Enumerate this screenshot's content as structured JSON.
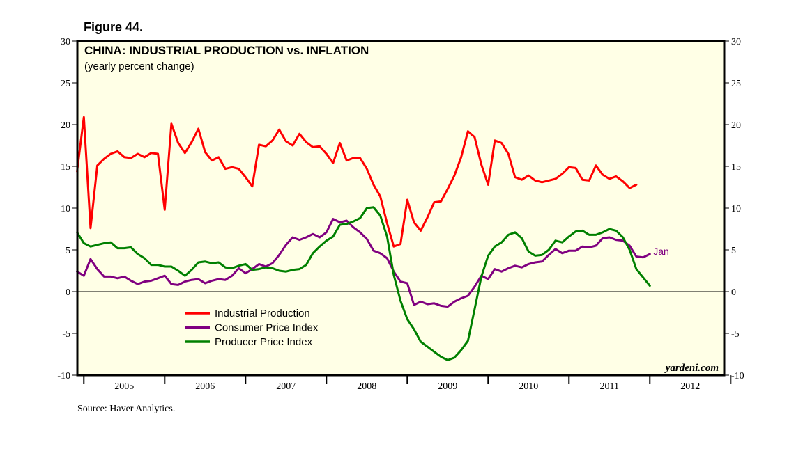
{
  "figure_label": "Figure 44.",
  "source": "Source: Haver Analytics.",
  "colors": {
    "background": "#ffffe6",
    "industrial_production": "#ff0000",
    "consumer_price_index": "#800080",
    "producer_price_index": "#008000"
  },
  "chart_data": {
    "type": "line",
    "title": "CHINA: INDUSTRIAL PRODUCTION vs. INFLATION",
    "subtitle": "(yearly percent change)",
    "credit": "yardeni.com",
    "ylim": [
      -10,
      30
    ],
    "yticks": [
      -10,
      -5,
      0,
      5,
      10,
      15,
      20,
      25,
      30
    ],
    "ytick_labels": [
      "-10",
      "-5",
      "0",
      "5",
      "10",
      "15",
      "20",
      "25",
      "30"
    ],
    "xlim": [
      2004.92,
      2012.92
    ],
    "x_tick_years": [
      2005,
      2006,
      2007,
      2008,
      2009,
      2010,
      2011,
      2012,
      2013
    ],
    "x_labels": [
      "2005",
      "2006",
      "2007",
      "2008",
      "2009",
      "2010",
      "2011",
      "2012"
    ],
    "x_start": "2004-12",
    "legend_position": "lower-left",
    "series": [
      {
        "name": "Industrial Production",
        "key": "industrial_production",
        "values": [
          14.4,
          20.9,
          7.6,
          15.1,
          15.9,
          16.5,
          16.8,
          16.1,
          16.0,
          16.5,
          16.1,
          16.6,
          16.5,
          9.8,
          20.1,
          17.8,
          16.6,
          17.9,
          19.5,
          16.7,
          15.7,
          16.1,
          14.7,
          14.9,
          14.7,
          13.7,
          12.6,
          17.6,
          17.4,
          18.1,
          19.4,
          18.0,
          17.5,
          18.9,
          17.9,
          17.3,
          17.4,
          16.5,
          15.4,
          17.8,
          15.7,
          16.0,
          16.0,
          14.7,
          12.8,
          11.4,
          8.2,
          5.4,
          5.7,
          11.0,
          8.3,
          7.3,
          8.9,
          10.7,
          10.8,
          12.3,
          13.9,
          16.1,
          19.2,
          18.5,
          15.2,
          12.8,
          18.1,
          17.8,
          16.5,
          13.7,
          13.4,
          13.9,
          13.3,
          13.1,
          13.3,
          13.5,
          14.1,
          14.9,
          14.8,
          13.4,
          13.3,
          15.1,
          14.0,
          13.5,
          13.8,
          13.2,
          12.4,
          12.8
        ]
      },
      {
        "name": "Consumer Price Index",
        "key": "consumer_price_index",
        "values": [
          2.4,
          1.9,
          3.9,
          2.7,
          1.8,
          1.8,
          1.6,
          1.8,
          1.3,
          0.9,
          1.2,
          1.3,
          1.6,
          1.9,
          0.9,
          0.8,
          1.2,
          1.4,
          1.5,
          1.0,
          1.3,
          1.5,
          1.4,
          1.9,
          2.8,
          2.2,
          2.7,
          3.3,
          3.0,
          3.4,
          4.4,
          5.6,
          6.5,
          6.2,
          6.5,
          6.9,
          6.5,
          7.1,
          8.7,
          8.3,
          8.5,
          7.7,
          7.1,
          6.3,
          4.9,
          4.6,
          4.0,
          2.4,
          1.2,
          1.0,
          -1.6,
          -1.2,
          -1.5,
          -1.4,
          -1.7,
          -1.8,
          -1.2,
          -0.8,
          -0.5,
          0.6,
          1.9,
          1.5,
          2.7,
          2.4,
          2.8,
          3.1,
          2.9,
          3.3,
          3.5,
          3.6,
          4.4,
          5.1,
          4.6,
          4.9,
          4.9,
          5.4,
          5.3,
          5.5,
          6.4,
          6.5,
          6.2,
          6.1,
          5.5,
          4.2,
          4.1,
          4.5
        ]
      },
      {
        "name": "Producer Price Index",
        "key": "producer_price_index",
        "values": [
          7.1,
          5.8,
          5.4,
          5.6,
          5.8,
          5.9,
          5.2,
          5.2,
          5.3,
          4.5,
          4.0,
          3.2,
          3.2,
          3.0,
          3.0,
          2.5,
          1.9,
          2.6,
          3.5,
          3.6,
          3.4,
          3.5,
          2.9,
          2.8,
          3.1,
          3.3,
          2.6,
          2.7,
          2.9,
          2.8,
          2.5,
          2.4,
          2.6,
          2.7,
          3.2,
          4.6,
          5.4,
          6.1,
          6.6,
          8.0,
          8.1,
          8.4,
          8.8,
          10.0,
          10.1,
          9.1,
          6.6,
          2.0,
          -1.1,
          -3.3,
          -4.5,
          -6.0,
          -6.6,
          -7.2,
          -7.8,
          -8.2,
          -7.9,
          -7.0,
          -5.9,
          -2.1,
          1.8,
          4.3,
          5.4,
          5.9,
          6.8,
          7.1,
          6.4,
          4.8,
          4.3,
          4.4,
          5.0,
          6.1,
          5.9,
          6.6,
          7.2,
          7.3,
          6.8,
          6.8,
          7.1,
          7.5,
          7.3,
          6.5,
          5.0,
          2.7,
          1.7,
          0.7
        ]
      }
    ],
    "annotation": {
      "series": "consumer_price_index",
      "text": "Jan"
    }
  }
}
